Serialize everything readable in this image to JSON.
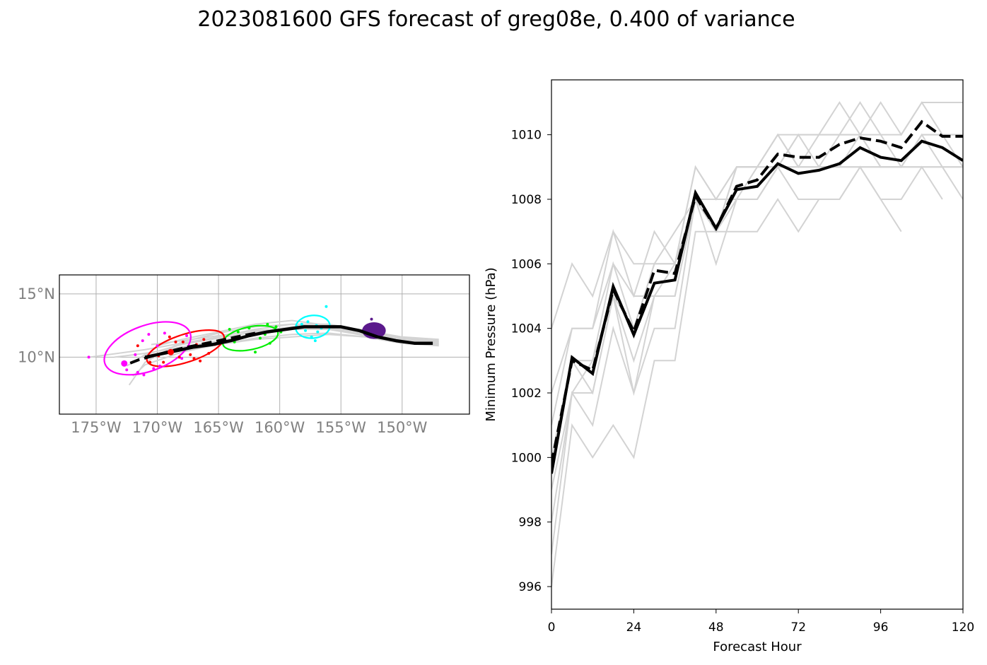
{
  "figure": {
    "title": "2023081600 GFS forecast of greg08e, 0.400 of variance"
  },
  "chart_data": [
    {
      "type": "line",
      "panel": "track-map",
      "xlim": [
        -178.0,
        -144.5
      ],
      "ylim": [
        5.5,
        16.5
      ],
      "grid": true,
      "x_ticks": [
        {
          "value": -175,
          "label": "175°W"
        },
        {
          "value": -170,
          "label": "170°W"
        },
        {
          "value": -165,
          "label": "165°W"
        },
        {
          "value": -160,
          "label": "160°W"
        },
        {
          "value": -155,
          "label": "155°W"
        },
        {
          "value": -150,
          "label": "150°W"
        }
      ],
      "y_ticks": [
        {
          "value": 15,
          "label": "15°N"
        },
        {
          "value": 10,
          "label": "10°N"
        }
      ],
      "colors": {
        "mean": "#000000",
        "members": "#d3d3d3",
        "day1": "#5b1a8c",
        "day2": "#00ffff",
        "day3": "#00ee00",
        "day4": "#ff0000",
        "day5": "#ff00ff"
      },
      "member_tracks": [
        {
          "lon": [
            -147,
            -150,
            -153,
            -156,
            -159,
            -162,
            -165,
            -168,
            -171,
            -175.5
          ],
          "lat": [
            11.4,
            11.6,
            12.1,
            12.6,
            12.6,
            12.2,
            11.6,
            11.1,
            10.6,
            10.0
          ]
        },
        {
          "lon": [
            -147,
            -150,
            -153,
            -156,
            -159,
            -162,
            -165,
            -168,
            -171,
            -173.5
          ],
          "lat": [
            11.0,
            11.3,
            11.8,
            12.2,
            12.2,
            11.8,
            11.3,
            10.8,
            10.3,
            10.0
          ]
        },
        {
          "lon": [
            -147,
            -150,
            -153,
            -156,
            -159,
            -162,
            -165,
            -168,
            -171,
            -172.5
          ],
          "lat": [
            11.3,
            11.5,
            12.0,
            12.4,
            12.4,
            12.0,
            11.5,
            11.0,
            10.2,
            9.3
          ]
        },
        {
          "lon": [
            -147,
            -150,
            -153,
            -156,
            -159,
            -162,
            -165,
            -168,
            -171,
            -172.0
          ],
          "lat": [
            10.9,
            11.1,
            11.6,
            11.9,
            11.8,
            11.5,
            11.0,
            10.4,
            9.4,
            8.5
          ]
        },
        {
          "lon": [
            -147,
            -150,
            -153,
            -156,
            -159,
            -162,
            -165,
            -168,
            -171,
            -172.3
          ],
          "lat": [
            11.2,
            11.4,
            11.9,
            12.3,
            12.6,
            12.4,
            11.9,
            11.2,
            9.6,
            7.8
          ]
        },
        {
          "lon": [
            -147,
            -150,
            -153,
            -156,
            -159,
            -162,
            -165,
            -168
          ],
          "lat": [
            11.0,
            11.1,
            11.6,
            11.8,
            11.6,
            11.4,
            11.0,
            10.7
          ]
        },
        {
          "lon": [
            -147,
            -150,
            -153,
            -156,
            -159,
            -162,
            -165,
            -168,
            -170.5
          ],
          "lat": [
            11.1,
            11.2,
            11.7,
            12.2,
            12.3,
            12.1,
            11.7,
            11.3,
            11.0
          ]
        },
        {
          "lon": [
            -147,
            -150,
            -153,
            -156,
            -159,
            -162,
            -165,
            -168,
            -170
          ],
          "lat": [
            11.2,
            11.3,
            11.8,
            12.5,
            12.9,
            12.6,
            12.0,
            11.4,
            10.9
          ]
        }
      ],
      "mean_track": {
        "lon": [
          -147.5,
          -149,
          -150.5,
          -152,
          -153.5,
          -155,
          -156.5,
          -158,
          -159.5,
          -161,
          -162.5,
          -164,
          -165.5,
          -167,
          -168.5,
          -170,
          -171
        ],
        "lat": [
          11.1,
          11.1,
          11.3,
          11.6,
          12.1,
          12.4,
          12.4,
          12.4,
          12.2,
          12.0,
          11.7,
          11.3,
          11.0,
          10.8,
          10.5,
          10.2,
          10.0
        ]
      },
      "dashed_track": {
        "lon": [
          -162,
          -164,
          -166,
          -168,
          -170,
          -171.5,
          -172.3
        ],
        "lat": [
          11.9,
          11.5,
          11.1,
          10.7,
          10.2,
          9.8,
          9.5
        ]
      },
      "ellipses": [
        {
          "lon": -152.3,
          "lat": 12.1,
          "rx": 0.9,
          "ry": 0.6,
          "angle": 0,
          "color": "#5b1a8c",
          "filled": true
        },
        {
          "lon": -157.3,
          "lat": 12.4,
          "rx": 1.4,
          "ry": 0.9,
          "angle": -5,
          "color": "#00ffff",
          "filled": false
        },
        {
          "lon": -162.4,
          "lat": 11.5,
          "rx": 2.3,
          "ry": 0.9,
          "angle": -12,
          "color": "#00ee00",
          "filled": false
        },
        {
          "lon": -167.7,
          "lat": 10.7,
          "rx": 3.3,
          "ry": 1.1,
          "angle": -18,
          "color": "#ff0000",
          "filled": false
        },
        {
          "lon": -170.8,
          "lat": 10.7,
          "rx": 3.7,
          "ry": 1.8,
          "angle": -20,
          "color": "#ff00ff",
          "filled": false
        }
      ],
      "member_points": [
        {
          "color": "#5b1a8c",
          "points": [
            [
              -152.8,
              12.4
            ],
            [
              -152.5,
              13.0
            ],
            [
              -151.8,
              12.3
            ],
            [
              -152.0,
              11.8
            ],
            [
              -153.2,
              12.1
            ],
            [
              -152.3,
              11.6
            ],
            [
              -151.6,
              12.0
            ],
            [
              -152.9,
              11.9
            ]
          ]
        },
        {
          "color": "#00ffff",
          "points": [
            [
              -156.2,
              14.0
            ],
            [
              -157.9,
              12.1
            ],
            [
              -157.0,
              12.5
            ],
            [
              -156.6,
              12.3
            ],
            [
              -158.2,
              12.6
            ],
            [
              -157.4,
              11.6
            ],
            [
              -156.9,
              12.0
            ],
            [
              -158.6,
              12.4
            ],
            [
              -157.7,
              12.8
            ],
            [
              -157.1,
              11.3
            ]
          ]
        },
        {
          "color": "#00ee00",
          "points": [
            [
              -164.6,
              11.4
            ],
            [
              -163.4,
              12.0
            ],
            [
              -162.5,
              12.3
            ],
            [
              -161.6,
              11.5
            ],
            [
              -160.3,
              12.4
            ],
            [
              -159.9,
              12.0
            ],
            [
              -161.0,
              12.6
            ],
            [
              -162.9,
              11.6
            ],
            [
              -163.7,
              11.2
            ],
            [
              -162.0,
              10.4
            ],
            [
              -161.2,
              11.8
            ],
            [
              -164.1,
              12.2
            ],
            [
              -160.8,
              11.1
            ]
          ]
        },
        {
          "color": "#ff0000",
          "points": [
            [
              -171.6,
              10.9
            ],
            [
              -170.6,
              9.6
            ],
            [
              -169.9,
              10.1
            ],
            [
              -168.9,
              10.3
            ],
            [
              -168.2,
              10.0
            ],
            [
              -167.3,
              10.2
            ],
            [
              -166.8,
              11.0
            ],
            [
              -165.8,
              10.3
            ],
            [
              -166.2,
              11.4
            ],
            [
              -167.9,
              11.2
            ],
            [
              -169.0,
              11.6
            ],
            [
              -166.5,
              9.7
            ],
            [
              -165.3,
              11.0
            ],
            [
              -167.0,
              9.9
            ],
            [
              -169.5,
              9.6
            ],
            [
              -168.5,
              11.2
            ]
          ]
        },
        {
          "color": "#ff00ff",
          "points": [
            [
              -175.6,
              10.0
            ],
            [
              -172.7,
              9.5
            ],
            [
              -172.5,
              9.0
            ],
            [
              -171.8,
              10.2
            ],
            [
              -171.2,
              11.3
            ],
            [
              -170.7,
              11.8
            ],
            [
              -170.3,
              9.1
            ],
            [
              -169.8,
              9.3
            ],
            [
              -171.1,
              8.6
            ],
            [
              -170.0,
              10.9
            ],
            [
              -169.4,
              11.9
            ],
            [
              -168.0,
              9.9
            ],
            [
              -167.6,
              11.7
            ],
            [
              -171.6,
              8.8
            ]
          ]
        }
      ],
      "initial_markers": [
        {
          "lon": -172.7,
          "lat": 9.5,
          "color": "#ff00ff"
        },
        {
          "lon": -168.9,
          "lat": 10.4,
          "color": "#ff0000"
        }
      ]
    },
    {
      "type": "line",
      "panel": "minimum-pressure",
      "xlabel": "Forecast Hour",
      "ylabel": "Minimum Pressure (hPa)",
      "xlim": [
        0,
        120
      ],
      "ylim": [
        995.3,
        1011.7
      ],
      "x_ticks": [
        0,
        24,
        48,
        72,
        96,
        120
      ],
      "y_ticks": [
        996,
        998,
        1000,
        1002,
        1004,
        1006,
        1008,
        1010
      ],
      "x": [
        0,
        6,
        12,
        18,
        24,
        30,
        36,
        42,
        48,
        54,
        60,
        66,
        72,
        78,
        84,
        90,
        96,
        102,
        108,
        114,
        120
      ],
      "series": [
        {
          "style": "solid",
          "color": "#000000",
          "values": [
            999.5,
            1003.1,
            1002.6,
            1005.3,
            1003.8,
            1005.4,
            1005.5,
            1008.2,
            1007.1,
            1008.3,
            1008.4,
            1009.1,
            1008.8,
            1008.9,
            1009.1,
            1009.6,
            1009.3,
            1009.2,
            1009.8,
            1009.6,
            1009.2
          ]
        },
        {
          "style": "dashed",
          "color": "#000000",
          "values": [
            999.8,
            1003.0,
            1002.7,
            1005.2,
            1003.9,
            1005.8,
            1005.7,
            1008.1,
            1007.1,
            1008.4,
            1008.6,
            1009.4,
            1009.3,
            1009.3,
            1009.7,
            1009.9,
            1009.8,
            1009.6,
            1010.4,
            1009.95,
            1009.95
          ]
        }
      ],
      "member_series": [
        [
          1004,
          1006,
          1005,
          1007,
          1006,
          1006,
          1007,
          1008,
          1007,
          1009,
          1009,
          1010,
          1010,
          1010,
          1011,
          1010,
          1011,
          1010,
          1011,
          1011,
          1011
        ],
        [
          1001,
          1004,
          1004,
          1006,
          1005,
          1007,
          1006,
          1009,
          1008,
          1009,
          1009,
          1010,
          1009,
          1010,
          1010,
          1011,
          1010,
          1010,
          1011,
          1010,
          1010
        ],
        [
          1000,
          1003,
          1003,
          1006,
          1004,
          1006,
          1006,
          1008,
          1007,
          1008,
          1008,
          1009,
          1009,
          1009,
          1009,
          1010,
          1009,
          1009,
          1010,
          1010,
          1009
        ],
        [
          999,
          1002,
          1003,
          1005,
          1003,
          1005,
          1005,
          1008,
          1007,
          1008,
          1009,
          1009,
          1010,
          1009,
          1009,
          1009,
          1009,
          1009,
          1010,
          1009,
          1009
        ],
        [
          998,
          1002,
          1002,
          1005,
          1002,
          1004,
          1004,
          1008,
          1006,
          1008,
          1008,
          1009,
          1008,
          1008,
          1008,
          1009,
          1008,
          1008,
          1009,
          1008
        ],
        [
          996,
          1001,
          1000,
          1001,
          1000,
          1003,
          1003,
          1007,
          1007,
          1007,
          1007,
          1008,
          1007,
          1008,
          1008,
          1009,
          1008,
          1007
        ],
        [
          1002,
          1004,
          1004,
          1007,
          1005,
          1005,
          1006,
          1009,
          1008,
          1009,
          1009,
          1009,
          1010,
          1010,
          1010,
          1010,
          1010,
          1009,
          1010,
          1010,
          1010
        ],
        [
          1000,
          1003,
          1002,
          1005,
          1004,
          1006,
          1006,
          1008,
          1007,
          1009,
          1009,
          1010,
          1009,
          1009,
          1010,
          1010,
          1009,
          1009,
          1009,
          1009,
          1008
        ],
        [
          997,
          1002,
          1001,
          1004,
          1002,
          1005,
          1005,
          1008,
          1008,
          1008,
          1008,
          1009,
          1009,
          1009,
          1009,
          1009,
          1009,
          1009,
          1009,
          1009,
          1009
        ]
      ]
    }
  ]
}
